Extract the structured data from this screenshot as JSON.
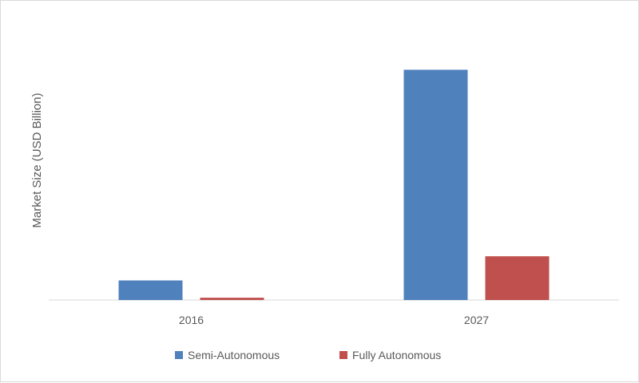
{
  "chart_data": {
    "type": "bar",
    "title": "",
    "xlabel": "",
    "ylabel": "Market Size (USD Billion)",
    "categories": [
      "2016",
      "2027"
    ],
    "series": [
      {
        "name": "Semi-Autonomous",
        "values": [
          0.085,
          1.0
        ],
        "color": "#4f81bd"
      },
      {
        "name": "Fully Autonomous",
        "values": [
          0.01,
          0.19
        ],
        "color": "#c0504d"
      }
    ],
    "ylim": [
      0,
      1.05
    ],
    "y_ticks_shown": false,
    "grid": false,
    "legend_position": "bottom-center"
  }
}
